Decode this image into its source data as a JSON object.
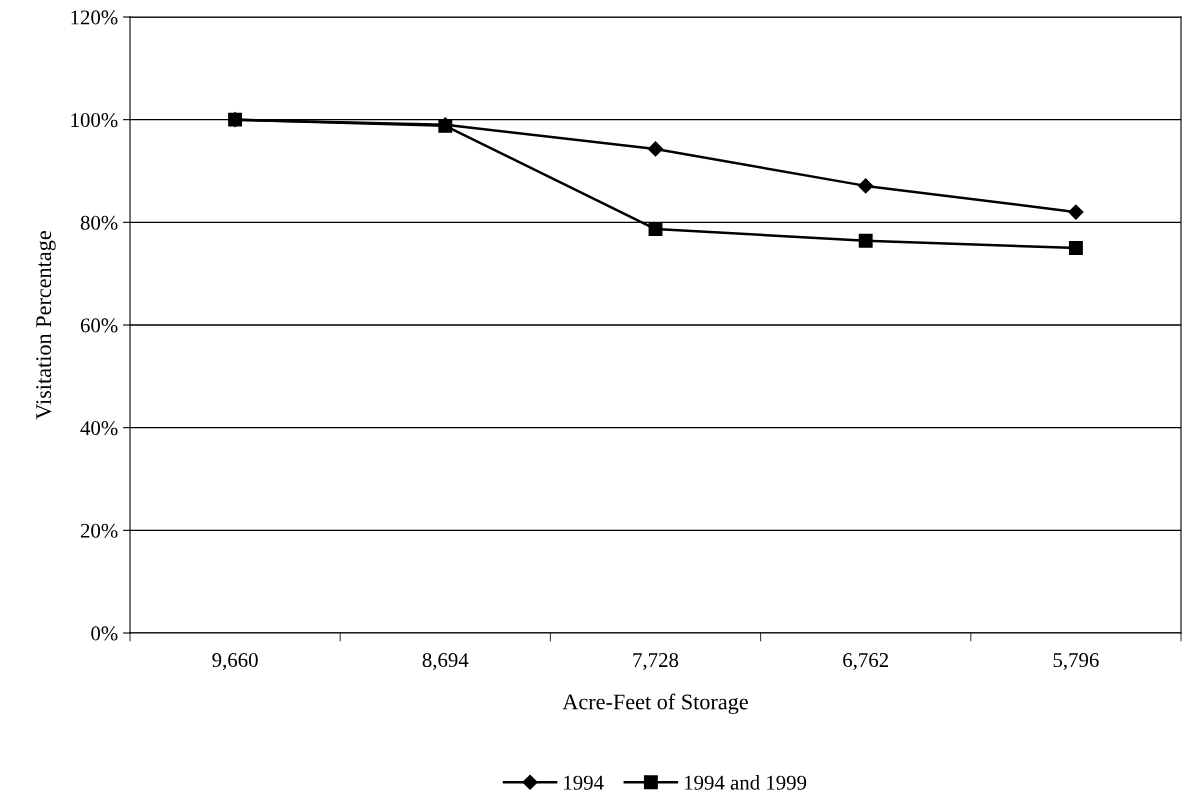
{
  "chart_data": {
    "type": "line",
    "xlabel": "Acre-Feet of Storage",
    "ylabel": "Visitation Percentage",
    "categories": [
      "9,660",
      "8,694",
      "7,728",
      "6,762",
      "5,796"
    ],
    "series": [
      {
        "name": "1994",
        "color": "#000000",
        "marker": "diamond",
        "values": [
          100,
          99,
          94.3,
          87.1,
          82.0
        ]
      },
      {
        "name": "1994 and 1999",
        "color": "#000000",
        "marker": "square",
        "values": [
          100,
          98.8,
          78.7,
          76.4,
          75.0
        ]
      }
    ],
    "ylim": [
      0,
      120
    ],
    "yticks": [
      {
        "value": 0,
        "label": "0%"
      },
      {
        "value": 20,
        "label": "20%"
      },
      {
        "value": 40,
        "label": "40%"
      },
      {
        "value": 60,
        "label": "60%"
      },
      {
        "value": 80,
        "label": "80%"
      },
      {
        "value": 100,
        "label": "100%"
      },
      {
        "value": 120,
        "label": "120%"
      }
    ],
    "grid": "y",
    "legend": "bottom",
    "line_style": "solid"
  }
}
